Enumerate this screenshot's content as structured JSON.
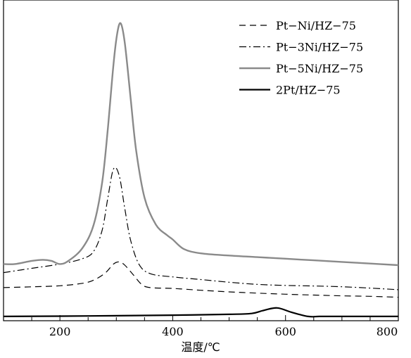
{
  "chart_data": {
    "type": "line",
    "title": "",
    "xlabel": "温度/℃",
    "ylabel": "",
    "xlim": [
      100,
      800
    ],
    "xticks": [
      200,
      400,
      600,
      800
    ],
    "yticks": [],
    "grid": false,
    "legend_position": "top-right",
    "series": [
      {
        "name": "Pt−Ni/HZ−75",
        "style": "dashed",
        "color": "#000000",
        "x": [
          100,
          150,
          200,
          240,
          260,
          280,
          295,
          305,
          315,
          330,
          345,
          360,
          400,
          450,
          500,
          550,
          600,
          650,
          700,
          750,
          800
        ],
        "y": [
          0.31,
          0.317,
          0.327,
          0.35,
          0.38,
          0.445,
          0.53,
          0.55,
          0.52,
          0.43,
          0.34,
          0.31,
          0.302,
          0.285,
          0.27,
          0.258,
          0.248,
          0.24,
          0.233,
          0.228,
          0.22
        ]
      },
      {
        "name": "Pt−3Ni/HZ−75",
        "style": "dashdot",
        "color": "#000000",
        "x": [
          100,
          150,
          200,
          240,
          260,
          275,
          285,
          295,
          305,
          315,
          325,
          340,
          360,
          400,
          450,
          500,
          550,
          600,
          650,
          700,
          750,
          800
        ],
        "y": [
          0.45,
          0.49,
          0.53,
          0.58,
          0.65,
          0.85,
          1.15,
          1.42,
          1.36,
          1.05,
          0.76,
          0.53,
          0.44,
          0.41,
          0.385,
          0.36,
          0.34,
          0.33,
          0.325,
          0.318,
          0.305,
          0.29
        ]
      },
      {
        "name": "Pt−5Ni/HZ−75",
        "style": "solid",
        "color": "#8a8a8a",
        "x": [
          100,
          120,
          150,
          170,
          185,
          200,
          215,
          240,
          260,
          275,
          285,
          295,
          302,
          308,
          315,
          325,
          335,
          350,
          370,
          390,
          400,
          420,
          450,
          500,
          550,
          600,
          650,
          700,
          750,
          800
        ],
        "y": [
          0.53,
          0.53,
          0.56,
          0.57,
          0.56,
          0.53,
          0.56,
          0.68,
          0.9,
          1.3,
          1.8,
          2.4,
          2.7,
          2.78,
          2.6,
          2.1,
          1.6,
          1.15,
          0.9,
          0.8,
          0.76,
          0.67,
          0.63,
          0.61,
          0.595,
          0.58,
          0.565,
          0.55,
          0.535,
          0.52
        ]
      },
      {
        "name": "2Pt/HZ−75",
        "style": "solid",
        "color": "#000000",
        "x": [
          100,
          200,
          300,
          400,
          500,
          540,
          560,
          585,
          610,
          640,
          660,
          700,
          750,
          800
        ],
        "y": [
          0.04,
          0.043,
          0.047,
          0.052,
          0.06,
          0.068,
          0.095,
          0.12,
          0.08,
          0.04,
          0.04,
          0.04,
          0.04,
          0.04
        ]
      }
    ]
  }
}
